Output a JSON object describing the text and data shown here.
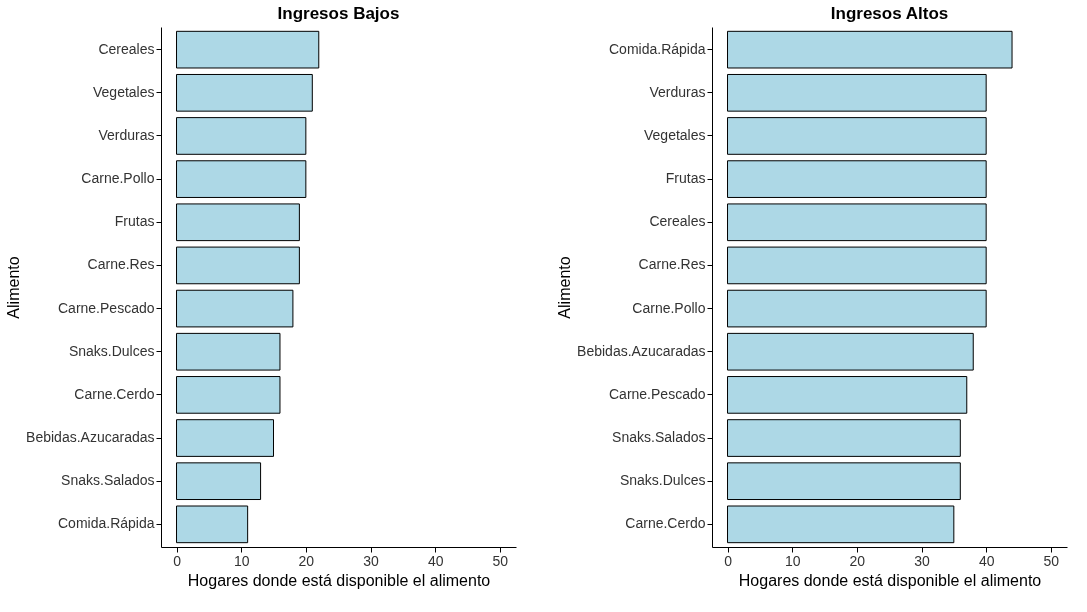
{
  "chart_data": [
    {
      "type": "bar",
      "orientation": "horizontal",
      "title": "Ingresos Bajos",
      "xlabel": "Hogares donde está disponible el alimento",
      "ylabel": "Alimento",
      "categories": [
        "Cereales",
        "Vegetales",
        "Verduras",
        "Carne.Pollo",
        "Frutas",
        "Carne.Res",
        "Carne.Pescado",
        "Snaks.Dulces",
        "Carne.Cerdo",
        "Bebidas.Azucaradas",
        "Snaks.Salados",
        "Comida.Rápida"
      ],
      "values": [
        22,
        21,
        20,
        20,
        19,
        19,
        18,
        16,
        16,
        15,
        13,
        11
      ],
      "color": "#add8e6",
      "xlim": [
        -2.4,
        52.5
      ],
      "xticks": [
        0,
        10,
        20,
        30,
        40,
        50
      ]
    },
    {
      "type": "bar",
      "orientation": "horizontal",
      "title": "Ingresos Altos",
      "xlabel": "Hogares donde está disponible el alimento",
      "ylabel": "Alimento",
      "categories": [
        "Comida.Rápida",
        "Verduras",
        "Vegetales",
        "Frutas",
        "Cereales",
        "Carne.Res",
        "Carne.Pollo",
        "Bebidas.Azucaradas",
        "Carne.Pescado",
        "Snaks.Salados",
        "Snaks.Dulces",
        "Carne.Cerdo"
      ],
      "values": [
        44,
        40,
        40,
        40,
        40,
        40,
        40,
        38,
        37,
        36,
        36,
        35
      ],
      "color": "#add8e6",
      "xlim": [
        -2.4,
        52.5
      ],
      "xticks": [
        0,
        10,
        20,
        30,
        40,
        50
      ]
    }
  ]
}
